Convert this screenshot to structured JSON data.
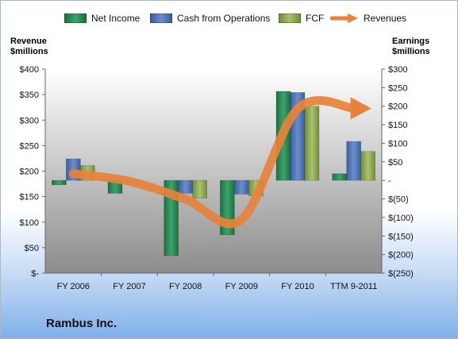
{
  "company": "Rambus Inc.",
  "legend": {
    "net_income": "Net Income",
    "cfo": "Cash from Operations",
    "fcf": "FCF",
    "revenues": "Revenues"
  },
  "axes": {
    "left_title_line1": "Revenue",
    "left_title_line2": "$millions",
    "right_title_line1": "Earnings",
    "right_title_line2": "$millions"
  },
  "colors": {
    "net_income": "#2e8b57",
    "cfo": "#4f76b5",
    "fcf": "#92ad5a",
    "revenues": "#e8823a",
    "plot_top": "#ffffff",
    "plot_bottom": "#8c8c8c"
  },
  "chart_data": {
    "type": "bar",
    "categories": [
      "FY 2006",
      "FY 2007",
      "FY 2008",
      "FY 2009",
      "FY 2010",
      "TTM 9-2011"
    ],
    "series": [
      {
        "name": "Net Income",
        "axis": "right",
        "values": [
          -12,
          -35,
          -203,
          -147,
          240,
          18
        ]
      },
      {
        "name": "Cash from Operations",
        "axis": "right",
        "values": [
          58,
          0,
          -35,
          -37,
          237,
          105
        ]
      },
      {
        "name": "FCF",
        "axis": "right",
        "values": [
          40,
          0,
          -48,
          -42,
          200,
          78
        ]
      },
      {
        "name": "Revenues",
        "type": "line",
        "axis": "left",
        "values": [
          195,
          180,
          145,
          105,
          322,
          323
        ]
      }
    ],
    "left_axis": {
      "ylim": [
        0,
        400
      ],
      "ticks": [
        "$400",
        "$350",
        "$300",
        "$250",
        "$200",
        "$150",
        "$100",
        "$50",
        "$-"
      ],
      "tick_values": [
        400,
        350,
        300,
        250,
        200,
        150,
        100,
        50,
        0
      ]
    },
    "right_axis": {
      "ylim": [
        -250,
        300
      ],
      "ticks": [
        "$300",
        "$250",
        "$200",
        "$150",
        "$100",
        "$50",
        "-",
        "$(50)",
        "$(100)",
        "$(150)",
        "$(200)",
        "$(250)"
      ],
      "tick_values": [
        300,
        250,
        200,
        150,
        100,
        50,
        0,
        -50,
        -100,
        -150,
        -200,
        -250
      ]
    },
    "grid": false,
    "legend_position": "top"
  }
}
